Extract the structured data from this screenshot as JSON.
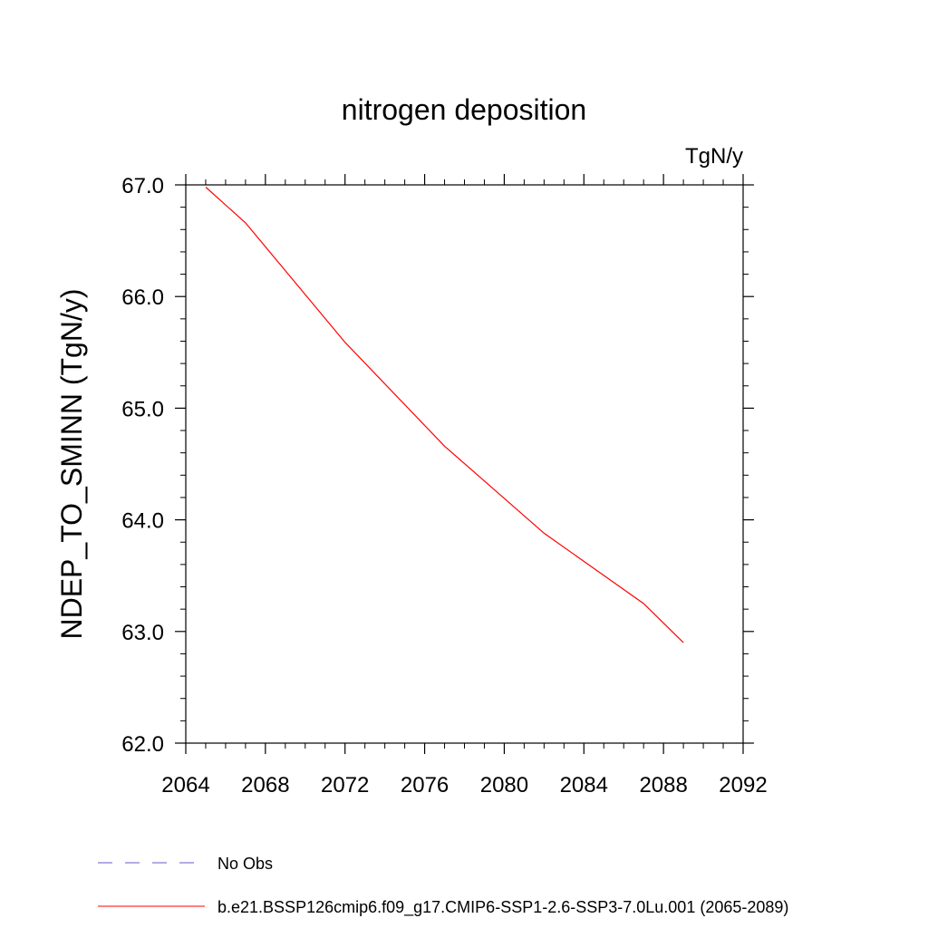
{
  "chart_data": {
    "type": "line",
    "title": "nitrogen deposition",
    "units_label": "TgN/y",
    "xlabel": "",
    "ylabel": "NDEP_TO_SMINN  (TgN/y)",
    "xlim": [
      2064,
      2092
    ],
    "ylim": [
      62.0,
      67.0
    ],
    "x_ticks": [
      2064,
      2068,
      2072,
      2076,
      2080,
      2084,
      2088,
      2092
    ],
    "x_tick_labels": [
      "2064",
      "2068",
      "2072",
      "2076",
      "2080",
      "2084",
      "2088",
      "2092"
    ],
    "y_ticks": [
      62.0,
      63.0,
      64.0,
      65.0,
      66.0,
      67.0
    ],
    "y_tick_labels": [
      "62.0",
      "63.0",
      "64.0",
      "65.0",
      "66.0",
      "67.0"
    ],
    "grid": false,
    "legend_placement": "bottom-left",
    "series": [
      {
        "name": "b.e21.BSSP126cmip6.f09_g17.CMIP6-SSP1-2.6-SSP3-7.0Lu.001 (2065-2089)",
        "color": "#ff0000",
        "style": "solid",
        "x": [
          2065,
          2067,
          2072,
          2077,
          2082,
          2087,
          2089
        ],
        "y": [
          66.98,
          66.66,
          65.59,
          64.66,
          63.88,
          63.25,
          62.9
        ]
      }
    ],
    "legend": [
      {
        "label": "No Obs",
        "color": "#6a5acd",
        "style": "dashed"
      },
      {
        "label": "b.e21.BSSP126cmip6.f09_g17.CMIP6-SSP1-2.6-SSP3-7.0Lu.001 (2065-2089)",
        "color": "#ff0000",
        "style": "solid"
      }
    ]
  }
}
